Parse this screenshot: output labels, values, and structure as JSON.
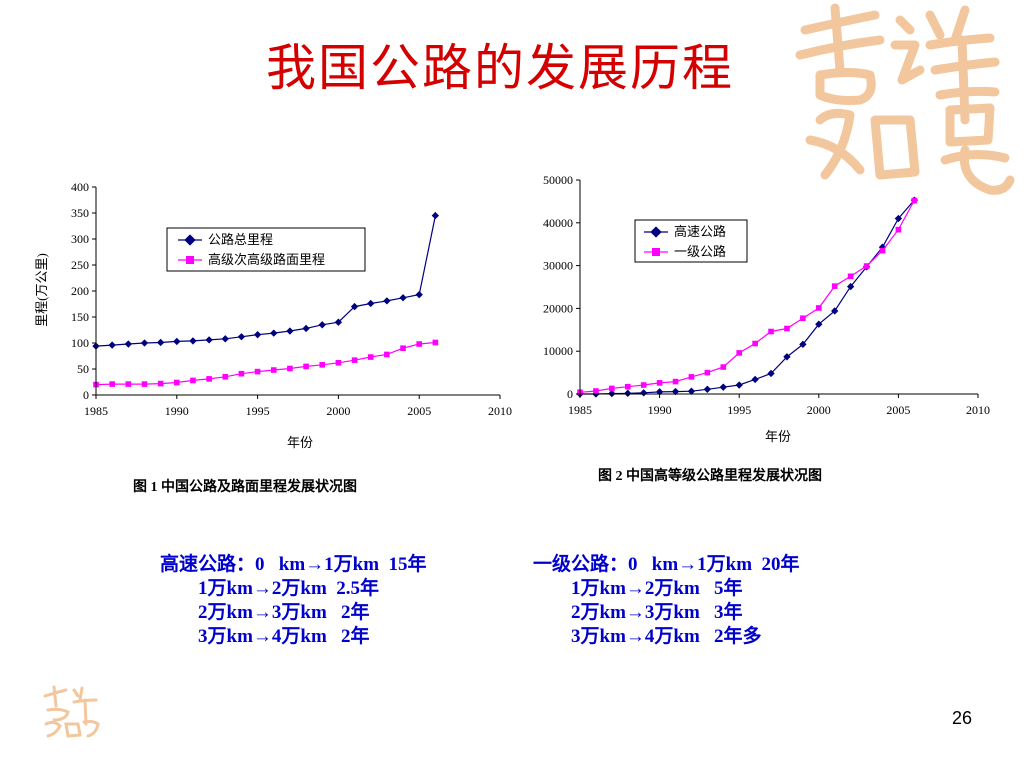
{
  "title": "我国公路的发展历程",
  "colors": {
    "title": "#d40000",
    "series_dark": "#000080",
    "series_magenta": "#ff00ff",
    "notes": "#0000cc",
    "deco": "#f3c79e"
  },
  "chart_data": [
    {
      "type": "line",
      "caption": "图 1  中国公路及路面里程发展状况图",
      "xlabel": "年份",
      "ylabel": "里程(万公里)",
      "xlim": [
        1985,
        2010
      ],
      "ylim": [
        0,
        400
      ],
      "xticks": [
        1985,
        1990,
        1995,
        2000,
        2005,
        2010
      ],
      "yticks": [
        0,
        50,
        100,
        150,
        200,
        250,
        300,
        350,
        400
      ],
      "legend": "top-center",
      "series": [
        {
          "name": "公路总里程",
          "marker": "diamond",
          "color": "#000080",
          "x": [
            1985,
            1986,
            1987,
            1988,
            1989,
            1990,
            1991,
            1992,
            1993,
            1994,
            1995,
            1996,
            1997,
            1998,
            1999,
            2000,
            2001,
            2002,
            2003,
            2004,
            2005,
            2006
          ],
          "y": [
            94,
            96,
            98,
            100,
            101,
            103,
            104,
            106,
            108,
            112,
            116,
            119,
            123,
            128,
            135,
            140,
            170,
            176,
            181,
            187,
            193,
            345
          ]
        },
        {
          "name": "高级次高级路面里程",
          "marker": "square",
          "color": "#ff00ff",
          "x": [
            1985,
            1986,
            1987,
            1988,
            1989,
            1990,
            1991,
            1992,
            1993,
            1994,
            1995,
            1996,
            1997,
            1998,
            1999,
            2000,
            2001,
            2002,
            2003,
            2004,
            2005,
            2006
          ],
          "y": [
            20,
            21,
            21,
            21,
            22,
            24,
            28,
            31,
            35,
            41,
            45,
            48,
            51,
            55,
            58,
            62,
            67,
            73,
            78,
            90,
            98,
            101
          ]
        }
      ]
    },
    {
      "type": "line",
      "caption": "图 2    中国高等级公路里程发展状况图",
      "xlabel": "年份",
      "ylabel": "",
      "xlim": [
        1985,
        2010
      ],
      "ylim": [
        0,
        50000
      ],
      "xticks": [
        1985,
        1990,
        1995,
        2000,
        2005,
        2010
      ],
      "yticks": [
        0,
        10000,
        20000,
        30000,
        40000,
        50000
      ],
      "legend": "top-left",
      "series": [
        {
          "name": "高速公路",
          "marker": "diamond",
          "color": "#000080",
          "x": [
            1985,
            1986,
            1987,
            1988,
            1989,
            1990,
            1991,
            1992,
            1993,
            1994,
            1995,
            1996,
            1997,
            1998,
            1999,
            2000,
            2001,
            2002,
            2003,
            2004,
            2005,
            2006
          ],
          "y": [
            0,
            0,
            100,
            150,
            270,
            500,
            570,
            650,
            1100,
            1600,
            2100,
            3400,
            4800,
            8700,
            11600,
            16300,
            19400,
            25100,
            29700,
            34300,
            41000,
            45300
          ]
        },
        {
          "name": "一级公路",
          "marker": "square",
          "color": "#ff00ff",
          "x": [
            1985,
            1986,
            1987,
            1988,
            1989,
            1990,
            1991,
            1992,
            1993,
            1994,
            1995,
            1996,
            1997,
            1998,
            1999,
            2000,
            2001,
            2002,
            2003,
            2004,
            2005,
            2006
          ],
          "y": [
            400,
            700,
            1300,
            1700,
            2100,
            2600,
            2900,
            4000,
            5000,
            6300,
            9600,
            11800,
            14600,
            15300,
            17700,
            20100,
            25200,
            27500,
            29900,
            33500,
            38400,
            45200
          ]
        }
      ]
    }
  ],
  "notes": {
    "left": [
      "高速公路：0   km→1万km  15年",
      "        1万km→2万km  2.5年",
      "        2万km→3万km   2年",
      "        3万km→4万km   2年"
    ],
    "right": [
      "一级公路：0   km→1万km  20年",
      "        1万km→2万km   5年",
      "        2万km→3万km   3年",
      "        3万km→4万km   2年多"
    ]
  },
  "page_number": "26"
}
